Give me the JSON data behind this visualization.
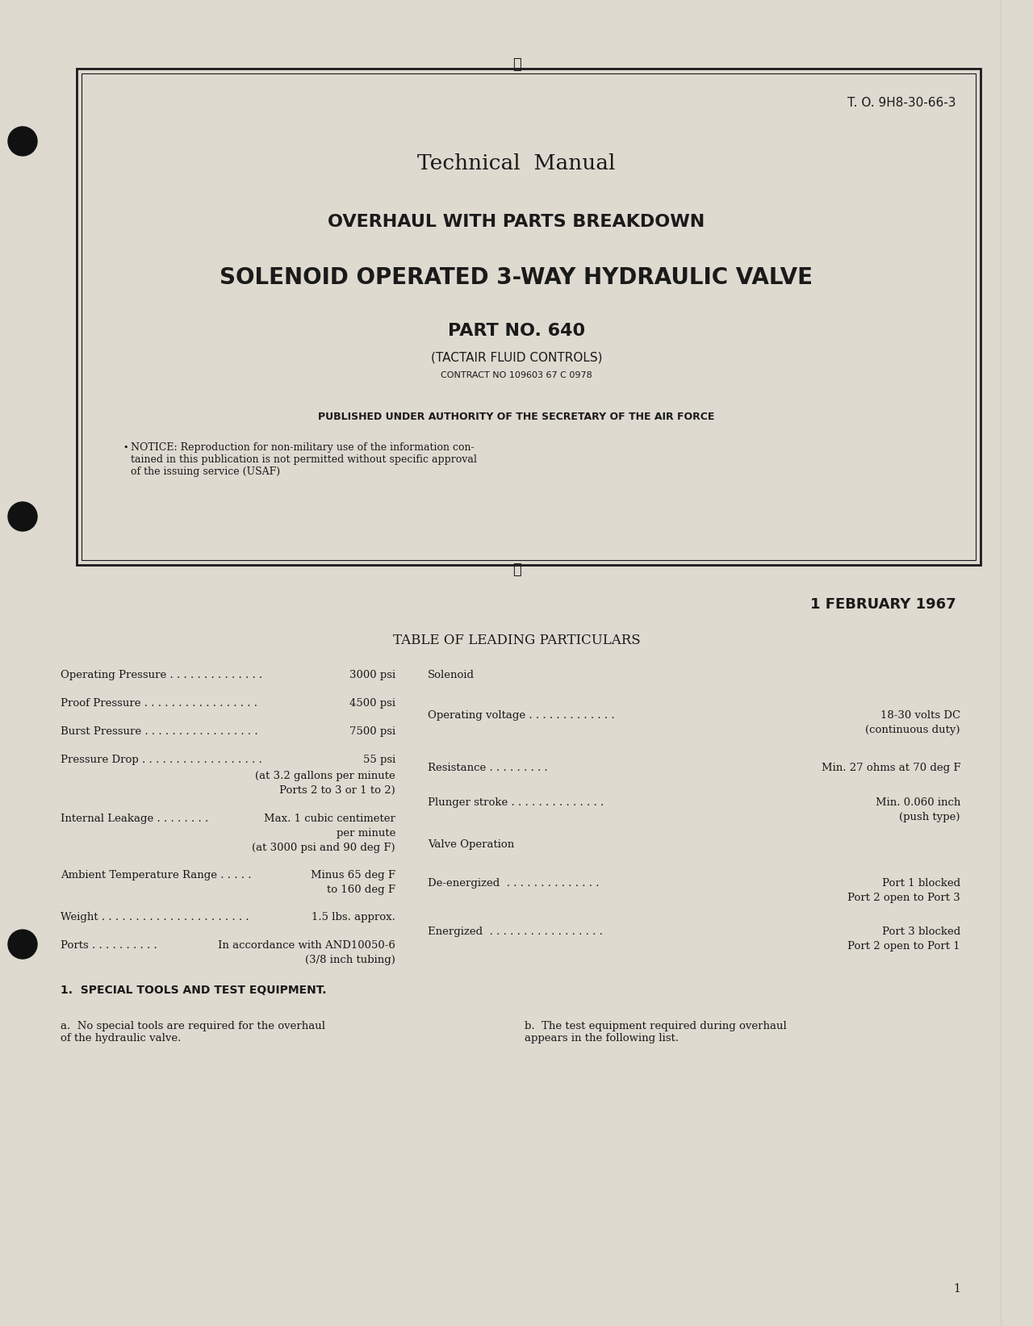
{
  "bg_color": "#e8e4d8",
  "page_bg": "#dedad0",
  "text_color": "#1a1a1a",
  "border_color": "#1a1a1a",
  "to_number": "T. O. 9H8-30-66-3",
  "title1": "Technical  Manual",
  "title2": "OVERHAUL WITH PARTS BREAKDOWN",
  "title3": "SOLENOID OPERATED 3-WAY HYDRAULIC VALVE",
  "part_no": "PART NO. 640",
  "manufacturer": "(TACTAIR FLUID CONTROLS)",
  "contract": "CONTRACT NO 109603 67 C 0978",
  "authority": "PUBLISHED UNDER AUTHORITY OF THE SECRETARY OF THE AIR FORCE",
  "notice": "NOTICE: Reproduction for non-military use of the information con-\ntained in this publication is not permitted without specific approval\nof the issuing service (USAF)",
  "date": "1 FEBRUARY 1967",
  "table_title": "TABLE OF LEADING PARTICULARS",
  "left_items": [
    [
      "Operating Pressure . . . . . . . . . . . . . . . .",
      "3000 psi"
    ],
    [
      "Proof Pressure . . . . . . . . . . . . . . . . . .",
      "4500 psi"
    ],
    [
      "Burst Pressure . . . . . . . . . . . . . . . . . .",
      "7500 psi"
    ],
    [
      "Pressure Drop . . . . . . . . . . . . . . . . . .",
      "55 psi"
    ],
    [
      "",
      "(at 3.2 gallons per minute"
    ],
    [
      "",
      "Ports 2 to 3 or 1 to 2)"
    ],
    [
      "Internal Leakage . . . . . . . .",
      "Max. 1 cubic centimeter"
    ],
    [
      "",
      "per minute"
    ],
    [
      "",
      "(at 3000 psi and 90 deg F)"
    ],
    [
      "Ambient Temperature Range . . . . .",
      "Minus 65 deg F"
    ],
    [
      "",
      "to 160 deg F"
    ],
    [
      "Weight . . . . . . . . . . . . . . . . . . . . . .",
      "1.5 lbs. approx."
    ],
    [
      "Ports . . . . . . . . . .",
      "In accordance with AND10050-6"
    ],
    [
      "",
      "(3/8 inch tubing)"
    ]
  ],
  "right_items": [
    [
      "Solenoid",
      ""
    ],
    [
      "",
      ""
    ],
    [
      "Operating voltage . . . . . . . . . . . . .",
      "18-30 volts DC"
    ],
    [
      "",
      "(continuous duty)"
    ],
    [
      "",
      ""
    ],
    [
      "Resistance . . . . . . . . . .",
      "Min. 27 ohms at 70 deg F"
    ],
    [
      "",
      ""
    ],
    [
      "Plunger stroke . . . . . . . . . . . . . .",
      "Min. 0.060 inch"
    ],
    [
      "",
      "(push type)"
    ],
    [
      "Valve Operation",
      ""
    ],
    [
      "",
      ""
    ],
    [
      "De-energized . . . . . . . . . . . . . . .",
      "Port 1 blocked"
    ],
    [
      "",
      "Port 2 open to Port 3"
    ],
    [
      "",
      ""
    ],
    [
      "Energized  . . . . . . . . . . . . . . . . .",
      "Port 3 blocked"
    ],
    [
      "",
      "Port 2 open to Port 1"
    ]
  ],
  "section_title": "1.  SPECIAL TOOLS AND TEST EQUIPMENT.",
  "para_a": "a.  No special tools are required for the overhaul\nof the hydraulic valve.",
  "para_b": "b.  The test equipment required during overhaul\nappears in the following list.",
  "page_num": "1"
}
